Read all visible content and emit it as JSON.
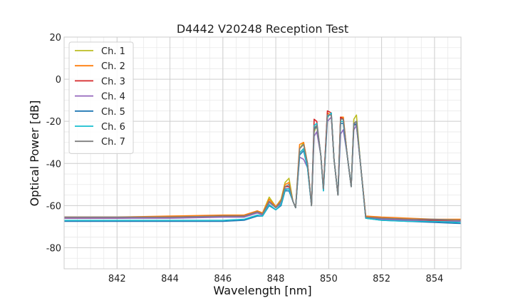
{
  "chart_data": {
    "type": "line",
    "title": "D4442 V20248 Reception Test",
    "xlabel": "Wavelength [nm]",
    "ylabel": "Optical Power [dB]",
    "xlim": [
      840.0,
      855.0
    ],
    "ylim": [
      -90,
      20
    ],
    "x_ticks": [
      842,
      844,
      846,
      848,
      850,
      852,
      854
    ],
    "y_ticks": [
      20,
      0,
      -20,
      -40,
      -60,
      -80
    ],
    "x_minor_step": 0.5,
    "y_minor_step": 5,
    "grid": true,
    "legend_position": "top-left",
    "series": [
      {
        "name": "Ch. 1",
        "color": "#bcbd22",
        "x": [
          840,
          842,
          844,
          846,
          846.8,
          847.3,
          847.5,
          847.75,
          848.0,
          848.2,
          848.35,
          848.5,
          848.65,
          848.75,
          848.9,
          849.05,
          849.2,
          849.35,
          849.45,
          849.55,
          849.7,
          849.8,
          849.95,
          850.1,
          850.2,
          850.35,
          850.45,
          850.55,
          850.7,
          850.85,
          850.95,
          851.05,
          851.2,
          851.4,
          852,
          853,
          854,
          855
        ],
        "y": [
          -66,
          -66,
          -65.5,
          -65,
          -65,
          -62.5,
          -63.5,
          -56,
          -60.5,
          -57,
          -49,
          -47,
          -58,
          -61,
          -33,
          -30,
          -40,
          -60,
          -25,
          -22,
          -36,
          -52,
          -17,
          -17,
          -38,
          -55,
          -19,
          -18,
          -36,
          -51,
          -19,
          -17,
          -40,
          -65,
          -66,
          -66.5,
          -67,
          -67
        ]
      },
      {
        "name": "Ch. 2",
        "color": "#ff7f0e",
        "x": [
          840,
          842,
          844,
          846,
          846.8,
          847.3,
          847.5,
          847.75,
          848.0,
          848.2,
          848.35,
          848.5,
          848.65,
          848.75,
          848.9,
          849.05,
          849.2,
          849.35,
          849.45,
          849.55,
          849.7,
          849.8,
          849.95,
          850.1,
          850.2,
          850.35,
          850.45,
          850.55,
          850.7,
          850.85,
          850.95,
          851.05,
          851.2,
          851.4,
          852,
          853,
          854,
          855
        ],
        "y": [
          -65.5,
          -65.5,
          -65,
          -64.5,
          -64.5,
          -62.5,
          -63.5,
          -57,
          -60.5,
          -57.5,
          -50,
          -49,
          -58,
          -61,
          -31,
          -30,
          -40,
          -60,
          -23,
          -22,
          -36,
          -52,
          -16,
          -17,
          -38,
          -55,
          -18,
          -18,
          -36,
          -51,
          -21,
          -20,
          -40,
          -65,
          -65.5,
          -66,
          -66.5,
          -66.5
        ]
      },
      {
        "name": "Ch. 3",
        "color": "#d62728",
        "x": [
          840,
          842,
          844,
          846,
          846.8,
          847.3,
          847.5,
          847.75,
          848.0,
          848.2,
          848.35,
          848.5,
          848.65,
          848.75,
          848.9,
          849.05,
          849.2,
          849.35,
          849.45,
          849.55,
          849.7,
          849.8,
          849.95,
          850.1,
          850.2,
          850.35,
          850.45,
          850.55,
          850.7,
          850.85,
          850.95,
          851.05,
          851.2,
          851.4,
          852,
          853,
          854,
          855
        ],
        "y": [
          -66,
          -66,
          -65.5,
          -65,
          -65,
          -63,
          -64,
          -58,
          -61,
          -58,
          -51,
          -51,
          -58,
          -61,
          -35,
          -33,
          -40,
          -60,
          -19,
          -20,
          -36,
          -52,
          -15,
          -16,
          -38,
          -55,
          -18,
          -19,
          -36,
          -51,
          -21,
          -22,
          -40,
          -65.5,
          -66,
          -66.5,
          -67,
          -67
        ]
      },
      {
        "name": "Ch. 4",
        "color": "#9467bd",
        "x": [
          840,
          842,
          844,
          846,
          846.8,
          847.3,
          847.5,
          847.75,
          848.0,
          848.2,
          848.35,
          848.5,
          848.65,
          848.75,
          848.9,
          849.05,
          849.2,
          849.35,
          849.45,
          849.55,
          849.7,
          849.8,
          849.95,
          850.1,
          850.2,
          850.35,
          850.45,
          850.55,
          850.7,
          850.85,
          850.95,
          851.05,
          851.2,
          851.4,
          852,
          853,
          854,
          855
        ],
        "y": [
          -66,
          -66,
          -66,
          -65.5,
          -65.5,
          -63.5,
          -64.5,
          -58.5,
          -61,
          -59,
          -52,
          -52,
          -58,
          -61,
          -37,
          -38,
          -42,
          -60,
          -27,
          -25,
          -36,
          -52,
          -20,
          -18,
          -38,
          -55,
          -26,
          -24,
          -36,
          -51,
          -24,
          -22,
          -40,
          -66,
          -66.5,
          -67,
          -67.5,
          -67.5
        ]
      },
      {
        "name": "Ch. 5",
        "color": "#1f77b4",
        "x": [
          840,
          842,
          844,
          846,
          846.8,
          847.3,
          847.5,
          847.75,
          848.0,
          848.2,
          848.35,
          848.5,
          848.65,
          848.75,
          848.9,
          849.05,
          849.2,
          849.35,
          849.45,
          849.55,
          849.7,
          849.8,
          849.95,
          850.1,
          850.2,
          850.35,
          850.45,
          850.55,
          850.7,
          850.85,
          850.95,
          851.05,
          851.2,
          851.4,
          852,
          853,
          854,
          855
        ],
        "y": [
          -67.5,
          -67.5,
          -67.5,
          -67.5,
          -67,
          -65,
          -65,
          -60,
          -62,
          -60,
          -53,
          -53,
          -58,
          -61,
          -36,
          -34,
          -42,
          -60,
          -24,
          -22,
          -36,
          -53,
          -17,
          -17,
          -38,
          -55,
          -21,
          -21,
          -36,
          -51,
          -22,
          -21,
          -40,
          -66,
          -67,
          -67.5,
          -68,
          -68.5
        ]
      },
      {
        "name": "Ch. 6",
        "color": "#17becf",
        "x": [
          840,
          842,
          844,
          846,
          846.8,
          847.3,
          847.5,
          847.75,
          848.0,
          848.2,
          848.35,
          848.5,
          848.65,
          848.75,
          848.9,
          849.05,
          849.2,
          849.35,
          849.45,
          849.55,
          849.7,
          849.8,
          849.95,
          850.1,
          850.2,
          850.35,
          850.45,
          850.55,
          850.7,
          850.85,
          850.95,
          851.05,
          851.2,
          851.4,
          852,
          853,
          854,
          855
        ],
        "y": [
          -67,
          -67,
          -67,
          -67,
          -66.5,
          -64.5,
          -65,
          -59.5,
          -62,
          -59.5,
          -52.5,
          -52,
          -58,
          -61,
          -35,
          -33,
          -42,
          -60,
          -22,
          -21,
          -36,
          -53,
          -18,
          -16,
          -38,
          -55,
          -20,
          -20,
          -36,
          -51,
          -21,
          -20,
          -40,
          -66,
          -67,
          -67.5,
          -67.5,
          -68
        ]
      },
      {
        "name": "Ch. 7",
        "color": "#7f7f7f",
        "x": [
          840,
          842,
          844,
          846,
          846.8,
          847.3,
          847.5,
          847.75,
          848.0,
          848.2,
          848.35,
          848.5,
          848.65,
          848.75,
          848.9,
          849.05,
          849.2,
          849.35,
          849.45,
          849.55,
          849.7,
          849.8,
          849.95,
          850.1,
          850.2,
          850.35,
          850.45,
          850.55,
          850.7,
          850.85,
          850.95,
          851.05,
          851.2,
          851.4,
          852,
          853,
          854,
          855
        ],
        "y": [
          -65.5,
          -65.5,
          -65.5,
          -65,
          -65,
          -63,
          -64,
          -58,
          -61,
          -58,
          -51,
          -50,
          -58,
          -61,
          -33,
          -31,
          -40,
          -60,
          -23,
          -22,
          -36,
          -52,
          -17,
          -17,
          -38,
          -55,
          -19,
          -19,
          -36,
          -51,
          -21,
          -20,
          -40,
          -65.5,
          -66,
          -66.5,
          -66.5,
          -67
        ]
      }
    ]
  }
}
